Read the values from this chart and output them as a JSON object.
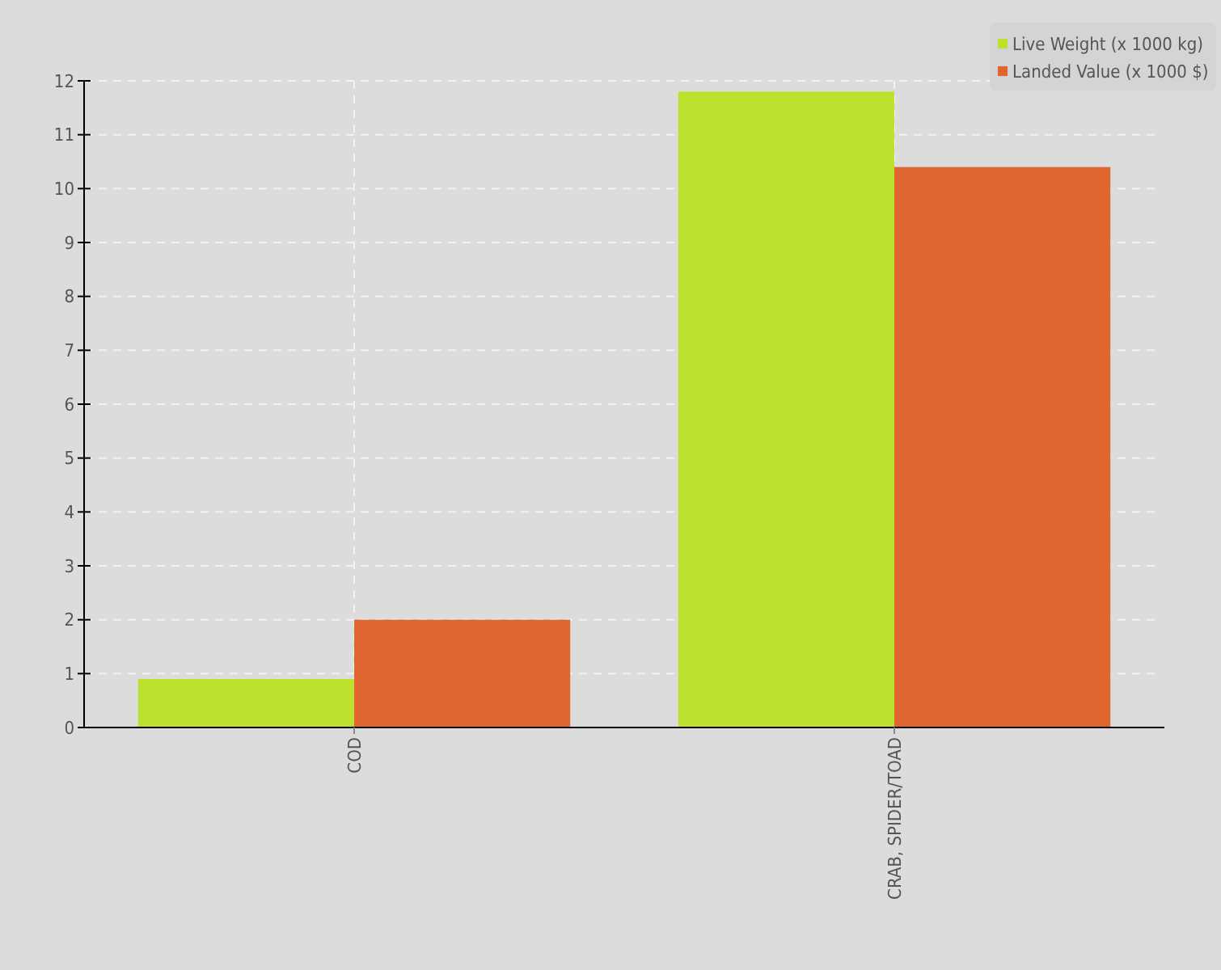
{
  "chart_data": {
    "type": "bar",
    "categories": [
      "COD",
      "CRAB, SPIDER/TOAD"
    ],
    "series": [
      {
        "name": "Live Weight (x 1000 kg)",
        "color": "#bde22d",
        "values": [
          0.9,
          11.8
        ]
      },
      {
        "name": "Landed Value (x 1000 $)",
        "color": "#e0652f",
        "values": [
          2.0,
          10.4
        ]
      }
    ],
    "ylim": [
      0,
      12
    ],
    "yticks": [
      0,
      1,
      2,
      3,
      4,
      5,
      6,
      7,
      8,
      9,
      10,
      11,
      12
    ],
    "grid": true,
    "legend": "top right"
  }
}
